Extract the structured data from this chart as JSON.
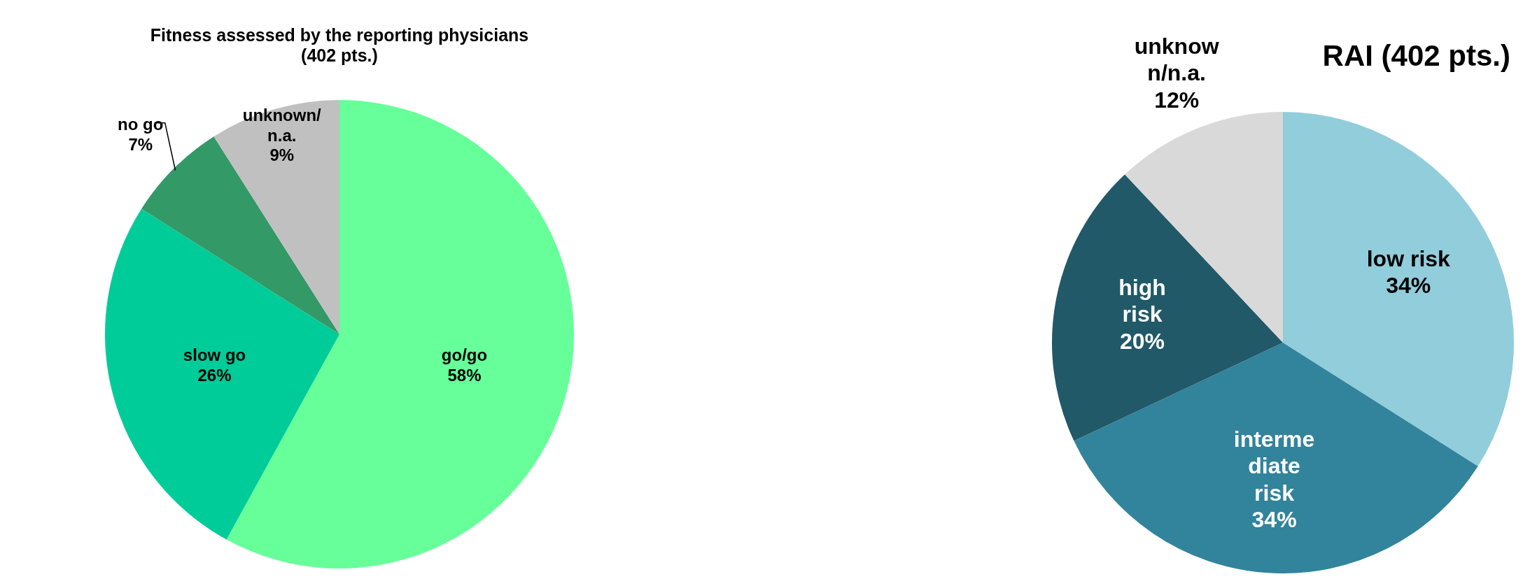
{
  "chart_data": [
    {
      "type": "pie",
      "title": "Fitness assessed by the reporting physicians\n(402 pts.)",
      "categories": [
        "go/go",
        "slow go",
        "no go",
        "unknown/\nn.a."
      ],
      "values": [
        58,
        26,
        7,
        9
      ],
      "value_labels": [
        "58%",
        "26%",
        "7%",
        "9%"
      ],
      "colors": [
        "#66ff99",
        "#00cc99",
        "#339966",
        "#c0c0c0"
      ],
      "legend": false
    },
    {
      "type": "pie",
      "title": "RAI (402 pts.)",
      "categories": [
        "low risk",
        "interme\ndiate\nrisk",
        "high\nrisk",
        "unknow\nn/n.a."
      ],
      "values": [
        34,
        34,
        20,
        12
      ],
      "value_labels": [
        "34%",
        "34%",
        "20%",
        "12%"
      ],
      "colors": [
        "#92cddc",
        "#31849b",
        "#215968",
        "#d9d9d9"
      ],
      "legend": false
    }
  ]
}
